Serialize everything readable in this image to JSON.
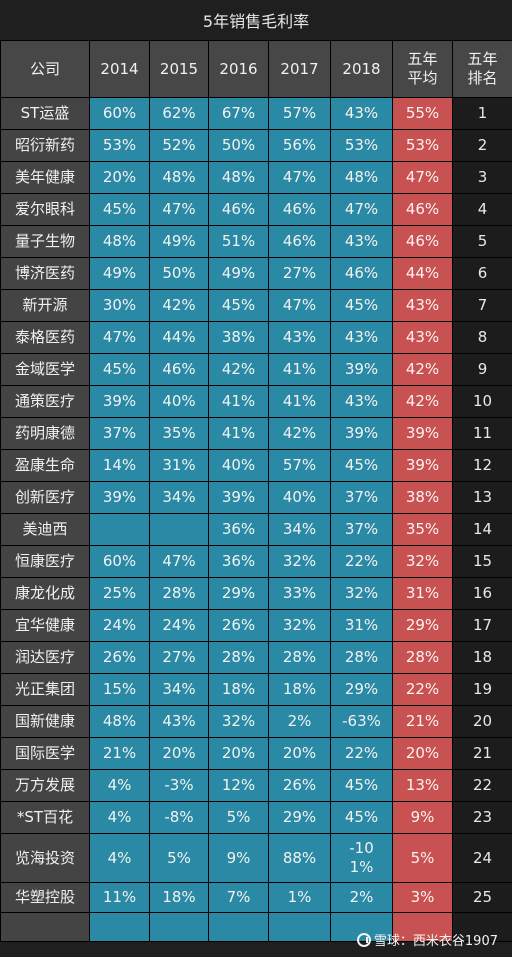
{
  "title": "5年销售毛利率",
  "headers": [
    "公司",
    "2014",
    "2015",
    "2016",
    "2017",
    "2018",
    "五年平均",
    "五年排名"
  ],
  "rows": [
    {
      "company": "ST运盛",
      "y2014": "60%",
      "y2015": "62%",
      "y2016": "67%",
      "y2017": "57%",
      "y2018": "43%",
      "avg": "55%",
      "rank": "1"
    },
    {
      "company": "昭衍新药",
      "y2014": "53%",
      "y2015": "52%",
      "y2016": "50%",
      "y2017": "56%",
      "y2018": "53%",
      "avg": "53%",
      "rank": "2"
    },
    {
      "company": "美年健康",
      "y2014": "20%",
      "y2015": "48%",
      "y2016": "48%",
      "y2017": "47%",
      "y2018": "48%",
      "avg": "47%",
      "rank": "3"
    },
    {
      "company": "爱尔眼科",
      "y2014": "45%",
      "y2015": "47%",
      "y2016": "46%",
      "y2017": "46%",
      "y2018": "47%",
      "avg": "46%",
      "rank": "4"
    },
    {
      "company": "量子生物",
      "y2014": "48%",
      "y2015": "49%",
      "y2016": "51%",
      "y2017": "46%",
      "y2018": "43%",
      "avg": "46%",
      "rank": "5"
    },
    {
      "company": "博济医药",
      "y2014": "49%",
      "y2015": "50%",
      "y2016": "49%",
      "y2017": "27%",
      "y2018": "46%",
      "avg": "44%",
      "rank": "6"
    },
    {
      "company": "新开源",
      "y2014": "30%",
      "y2015": "42%",
      "y2016": "45%",
      "y2017": "47%",
      "y2018": "45%",
      "avg": "43%",
      "rank": "7"
    },
    {
      "company": "泰格医药",
      "y2014": "47%",
      "y2015": "44%",
      "y2016": "38%",
      "y2017": "43%",
      "y2018": "43%",
      "avg": "43%",
      "rank": "8"
    },
    {
      "company": "金域医学",
      "y2014": "45%",
      "y2015": "46%",
      "y2016": "42%",
      "y2017": "41%",
      "y2018": "39%",
      "avg": "42%",
      "rank": "9"
    },
    {
      "company": "通策医疗",
      "y2014": "39%",
      "y2015": "40%",
      "y2016": "41%",
      "y2017": "41%",
      "y2018": "43%",
      "avg": "42%",
      "rank": "10"
    },
    {
      "company": "药明康德",
      "y2014": "37%",
      "y2015": "35%",
      "y2016": "41%",
      "y2017": "42%",
      "y2018": "39%",
      "avg": "39%",
      "rank": "11"
    },
    {
      "company": "盈康生命",
      "y2014": "14%",
      "y2015": "31%",
      "y2016": "40%",
      "y2017": "57%",
      "y2018": "45%",
      "avg": "39%",
      "rank": "12"
    },
    {
      "company": "创新医疗",
      "y2014": "39%",
      "y2015": "34%",
      "y2016": "39%",
      "y2017": "40%",
      "y2018": "37%",
      "avg": "38%",
      "rank": "13"
    },
    {
      "company": "美迪西",
      "y2014": "",
      "y2015": "",
      "y2016": "36%",
      "y2017": "34%",
      "y2018": "37%",
      "avg": "35%",
      "rank": "14"
    },
    {
      "company": "恒康医疗",
      "y2014": "60%",
      "y2015": "47%",
      "y2016": "36%",
      "y2017": "32%",
      "y2018": "22%",
      "avg": "32%",
      "rank": "15"
    },
    {
      "company": "康龙化成",
      "y2014": "25%",
      "y2015": "28%",
      "y2016": "29%",
      "y2017": "33%",
      "y2018": "32%",
      "avg": "31%",
      "rank": "16"
    },
    {
      "company": "宜华健康",
      "y2014": "24%",
      "y2015": "24%",
      "y2016": "26%",
      "y2017": "32%",
      "y2018": "31%",
      "avg": "29%",
      "rank": "17"
    },
    {
      "company": "润达医疗",
      "y2014": "26%",
      "y2015": "27%",
      "y2016": "28%",
      "y2017": "28%",
      "y2018": "28%",
      "avg": "28%",
      "rank": "18"
    },
    {
      "company": "光正集团",
      "y2014": "15%",
      "y2015": "34%",
      "y2016": "18%",
      "y2017": "18%",
      "y2018": "29%",
      "avg": "22%",
      "rank": "19"
    },
    {
      "company": "国新健康",
      "y2014": "48%",
      "y2015": "43%",
      "y2016": "32%",
      "y2017": "2%",
      "y2018": "-63%",
      "avg": "21%",
      "rank": "20"
    },
    {
      "company": "国际医学",
      "y2014": "21%",
      "y2015": "20%",
      "y2016": "20%",
      "y2017": "20%",
      "y2018": "22%",
      "avg": "20%",
      "rank": "21"
    },
    {
      "company": "万方发展",
      "y2014": "4%",
      "y2015": "-3%",
      "y2016": "12%",
      "y2017": "26%",
      "y2018": "45%",
      "avg": "13%",
      "rank": "22"
    },
    {
      "company": "*ST百花",
      "y2014": "4%",
      "y2015": "-8%",
      "y2016": "5%",
      "y2017": "29%",
      "y2018": "45%",
      "avg": "9%",
      "rank": "23"
    },
    {
      "company": "览海投资",
      "y2014": "4%",
      "y2015": "5%",
      "y2016": "9%",
      "y2017": "88%",
      "y2018": "-101%",
      "avg": "5%",
      "rank": "24"
    },
    {
      "company": "华塑控股",
      "y2014": "11%",
      "y2015": "18%",
      "y2016": "7%",
      "y2017": "1%",
      "y2018": "2%",
      "avg": "3%",
      "rank": "25"
    }
  ],
  "watermark": {
    "text": "雪球：西米衣谷1907",
    "icon": "snowball-logo-icon"
  },
  "colors": {
    "year_cells": "#2a8aa5",
    "avg_cells": "#c85252",
    "header": "#474747",
    "company": "#444444",
    "rank": "#1c1c1c"
  }
}
